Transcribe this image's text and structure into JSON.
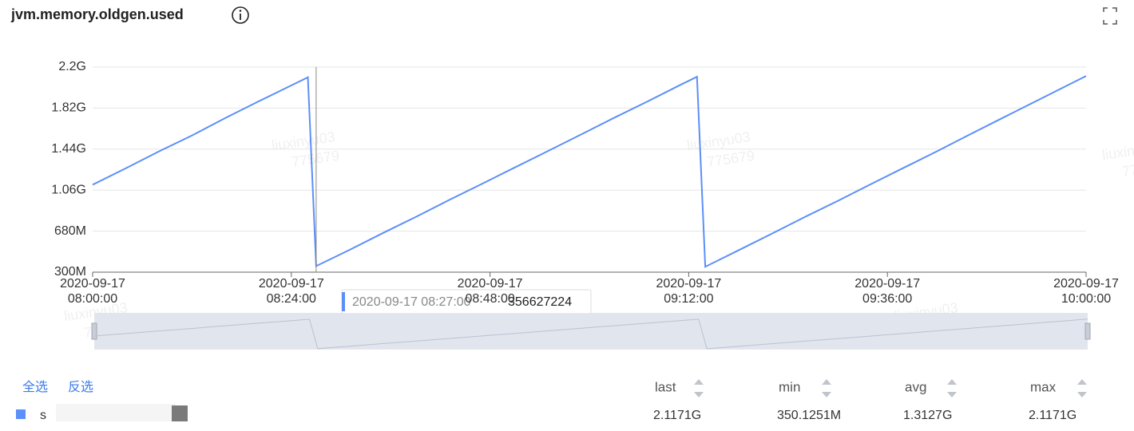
{
  "chart_data": {
    "type": "line",
    "title": "jvm.memory.oldgen.used",
    "x": [
      "2020-09-17 08:00:00",
      "2020-09-17 08:04:00",
      "2020-09-17 08:08:00",
      "2020-09-17 08:12:00",
      "2020-09-17 08:16:00",
      "2020-09-17 08:20:00",
      "2020-09-17 08:24:00",
      "2020-09-17 08:26:00",
      "2020-09-17 08:27:00",
      "2020-09-17 08:31:00",
      "2020-09-17 08:35:00",
      "2020-09-17 08:39:00",
      "2020-09-17 08:43:00",
      "2020-09-17 08:47:00",
      "2020-09-17 08:51:00",
      "2020-09-17 08:55:00",
      "2020-09-17 08:59:00",
      "2020-09-17 09:03:00",
      "2020-09-17 09:07:00",
      "2020-09-17 09:11:00",
      "2020-09-17 09:13:00",
      "2020-09-17 09:14:00",
      "2020-09-17 09:18:00",
      "2020-09-17 09:22:00",
      "2020-09-17 09:26:00",
      "2020-09-17 09:30:00",
      "2020-09-17 09:34:00",
      "2020-09-17 09:38:00",
      "2020-09-17 09:42:00",
      "2020-09-17 09:46:00",
      "2020-09-17 09:50:00",
      "2020-09-17 09:54:00",
      "2020-09-17 09:58:00",
      "2020-09-17 10:00:00"
    ],
    "series": [
      {
        "name": "s",
        "color": "#5b8ff9",
        "values": [
          1110000000,
          1262000000,
          1418000000,
          1566000000,
          1727000000,
          1880000000,
          2030000000,
          2105000000,
          356627224,
          505000000,
          660000000,
          810000000,
          966000000,
          1117000000,
          1270000000,
          1422000000,
          1575000000,
          1730000000,
          1880000000,
          2035000000,
          2110000000,
          350125100,
          502000000,
          655000000,
          810000000,
          960000000,
          1115000000,
          1268000000,
          1420000000,
          1577000000,
          1732000000,
          1886000000,
          2040000000,
          2117100000
        ]
      }
    ],
    "xlim": [
      "2020-09-17 08:00:00",
      "2020-09-17 10:00:00"
    ],
    "xticks": [
      "2020-09-17 08:00:00",
      "2020-09-17 08:24:00",
      "2020-09-17 08:48:00",
      "2020-09-17 09:12:00",
      "2020-09-17 09:36:00",
      "2020-09-17 10:00:00"
    ],
    "ylim": [
      300000000,
      2200000000
    ],
    "yticks": [
      {
        "value": 300000000,
        "label": "300M"
      },
      {
        "value": 680000000,
        "label": "680M"
      },
      {
        "value": 1060000000,
        "label": "1.06G"
      },
      {
        "value": 1440000000,
        "label": "1.44G"
      },
      {
        "value": 1820000000,
        "label": "1.82G"
      },
      {
        "value": 2200000000,
        "label": "2.2G"
      }
    ],
    "grid": true,
    "tooltip_index": 8
  },
  "legend_table": {
    "select_all": "全选",
    "invert": "反选",
    "columns": [
      "last",
      "min",
      "avg",
      "max"
    ],
    "rows": [
      {
        "name": "s",
        "stats": [
          "2.1171G",
          "350.1251M",
          "1.3127G",
          "2.1171G"
        ]
      }
    ]
  },
  "watermark": [
    "liuxinyu03",
    "775679"
  ]
}
